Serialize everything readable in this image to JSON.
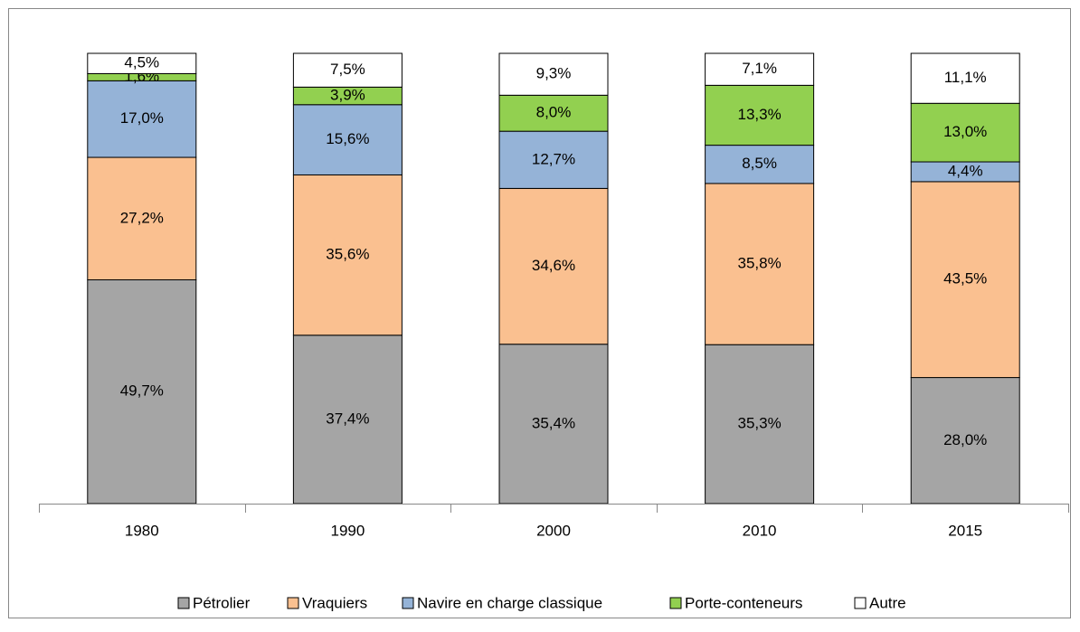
{
  "chart_data": {
    "type": "stacked_bar",
    "categories": [
      "1980",
      "1990",
      "2000",
      "2010",
      "2015"
    ],
    "ylim": [
      0,
      100
    ],
    "legend": "bottom",
    "series": [
      {
        "name": "Pétrolier",
        "color": "#a5a5a5",
        "values": [
          49.7,
          37.4,
          35.4,
          35.3,
          28.0
        ],
        "value_labels": [
          "49,7%",
          "37,4%",
          "35,4%",
          "35,3%",
          "28,0%"
        ]
      },
      {
        "name": "Vraquiers",
        "color": "#fac090",
        "values": [
          27.2,
          35.6,
          34.6,
          35.8,
          43.5
        ],
        "value_labels": [
          "27,2%",
          "35,6%",
          "34,6%",
          "35,8%",
          "43,5%"
        ]
      },
      {
        "name": "Navire en charge classique",
        "color": "#95b3d7",
        "values": [
          17.0,
          15.6,
          12.7,
          8.5,
          4.4
        ],
        "value_labels": [
          "17,0%",
          "15,6%",
          "12,7%",
          "8,5%",
          "4,4%"
        ]
      },
      {
        "name": "Porte-conteneurs",
        "color": "#92d050",
        "values": [
          1.6,
          3.9,
          8.0,
          13.3,
          13.0
        ],
        "value_labels": [
          "1,6%",
          "3,9%",
          "8,0%",
          "13,3%",
          "13,0%"
        ]
      },
      {
        "name": "Autre",
        "color": "#ffffff",
        "values": [
          4.5,
          7.5,
          9.3,
          7.1,
          11.1
        ],
        "value_labels": [
          "4,5%",
          "7,5%",
          "9,3%",
          "7,1%",
          "11,1%"
        ]
      }
    ]
  }
}
